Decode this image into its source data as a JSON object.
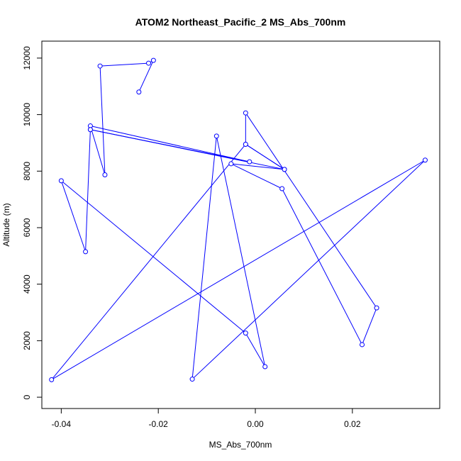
{
  "chart_data": {
    "type": "line",
    "title": "ATOM2 Northeast_Pacific_2 MS_Abs_700nm",
    "xlabel": "MS_Abs_700nm",
    "ylabel": "Altitude (m)",
    "xlim": [
      -0.044,
      0.038
    ],
    "ylim": [
      -400,
      12600
    ],
    "x_ticks": [
      -0.04,
      -0.02,
      0.0,
      0.02
    ],
    "x_tick_labels": [
      "-0.04",
      "-0.02",
      "0.00",
      "0.02"
    ],
    "y_ticks": [
      0,
      2000,
      4000,
      6000,
      8000,
      10000,
      12000
    ],
    "y_tick_labels": [
      "0",
      "2000",
      "4000",
      "6000",
      "8000",
      "10000",
      "12000"
    ],
    "grid": false,
    "series": [
      {
        "color": "#0000ff",
        "marker": "open-circle",
        "points": [
          {
            "x": -0.024,
            "y": 10800
          },
          {
            "x": -0.021,
            "y": 11920
          },
          {
            "x": -0.022,
            "y": 11820
          },
          {
            "x": -0.032,
            "y": 11720
          },
          {
            "x": -0.031,
            "y": 7870
          },
          {
            "x": -0.034,
            "y": 9600
          },
          {
            "x": -0.0012,
            "y": 8330
          },
          {
            "x": -0.034,
            "y": 9470
          },
          {
            "x": 0.006,
            "y": 8060
          },
          {
            "x": -0.005,
            "y": 8260
          },
          {
            "x": 0.0055,
            "y": 7380
          },
          {
            "x": 0.022,
            "y": 1860
          },
          {
            "x": 0.025,
            "y": 3160
          },
          {
            "x": -0.002,
            "y": 10060
          },
          {
            "x": -0.002,
            "y": 8950
          },
          {
            "x": 0.006,
            "y": 8060
          },
          {
            "x": -0.002,
            "y": 8950
          },
          {
            "x": -0.042,
            "y": 620
          },
          {
            "x": 0.035,
            "y": 8390
          },
          {
            "x": -0.013,
            "y": 640
          },
          {
            "x": -0.008,
            "y": 9240
          },
          {
            "x": 0.002,
            "y": 1080
          },
          {
            "x": -0.002,
            "y": 2270
          },
          {
            "x": -0.04,
            "y": 7660
          },
          {
            "x": -0.035,
            "y": 5150
          },
          {
            "x": -0.034,
            "y": 9470
          }
        ]
      }
    ]
  }
}
